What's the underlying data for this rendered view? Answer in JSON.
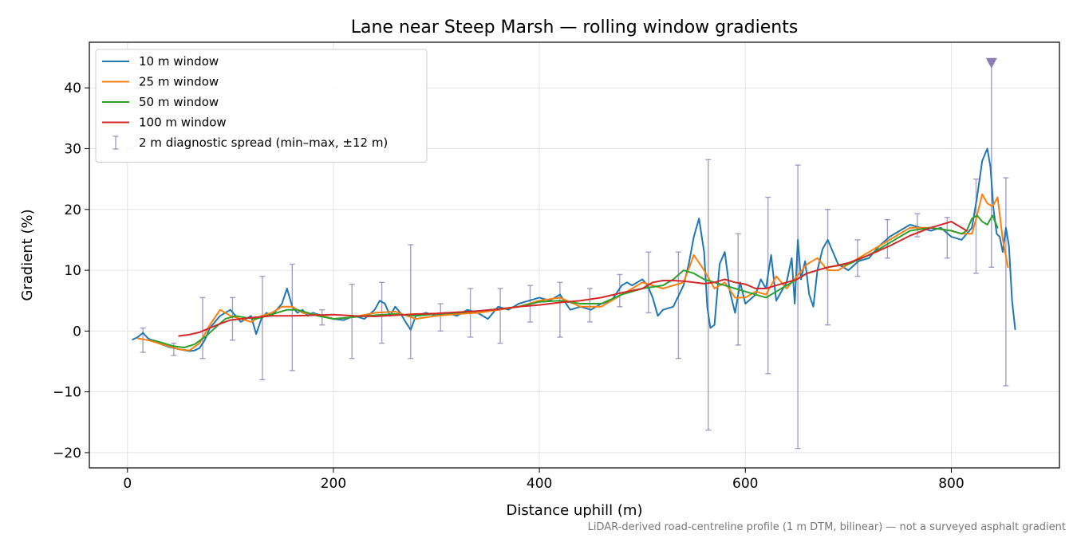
{
  "chart_data": {
    "type": "line",
    "title": "Lane near Steep Marsh — rolling window gradients",
    "xlabel": "Distance uphill (m)",
    "ylabel": "Gradient (%)",
    "xlim": [
      -37,
      905
    ],
    "ylim": [
      -22.5,
      47.5
    ],
    "xticks": [
      0,
      200,
      400,
      600,
      800
    ],
    "xtick_labels": [
      "0",
      "200",
      "400",
      "600",
      "800"
    ],
    "yticks": [
      -20,
      -10,
      0,
      10,
      20,
      30,
      40
    ],
    "ytick_labels": [
      "−20",
      "−10",
      "0",
      "10",
      "20",
      "30",
      "40"
    ],
    "grid": true,
    "legend_position": "top-left",
    "footnote": "LiDAR-derived road-centreline profile (1 m DTM, bilinear) — not a surveyed asphalt gradient",
    "series": [
      {
        "name": "10 m window",
        "color": "#1f77b4",
        "x": [
          5,
          10,
          15,
          20,
          25,
          30,
          40,
          50,
          60,
          65,
          70,
          75,
          80,
          90,
          100,
          110,
          120,
          125,
          130,
          135,
          140,
          145,
          150,
          155,
          160,
          165,
          170,
          175,
          180,
          190,
          200,
          210,
          220,
          230,
          240,
          245,
          250,
          255,
          260,
          265,
          270,
          275,
          280,
          290,
          300,
          310,
          320,
          330,
          340,
          350,
          360,
          370,
          380,
          390,
          400,
          410,
          420,
          430,
          440,
          450,
          460,
          470,
          480,
          485,
          490,
          500,
          505,
          510,
          515,
          520,
          530,
          540,
          545,
          550,
          555,
          560,
          563,
          566,
          570,
          575,
          580,
          585,
          590,
          595,
          600,
          610,
          615,
          620,
          625,
          630,
          640,
          645,
          648,
          651,
          654,
          658,
          662,
          666,
          670,
          675,
          680,
          690,
          700,
          710,
          720,
          730,
          740,
          750,
          760,
          770,
          780,
          790,
          800,
          810,
          815,
          820,
          825,
          830,
          835,
          838,
          841,
          844,
          847,
          850,
          853,
          856,
          859,
          862
        ],
        "values": [
          -1.4,
          -1.0,
          -0.3,
          -1.2,
          -1.6,
          -2.0,
          -2.6,
          -3.0,
          -3.3,
          -3.2,
          -2.8,
          -1.5,
          0.5,
          2.5,
          3.5,
          1.5,
          2.5,
          -0.5,
          2.0,
          3.0,
          2.5,
          3.5,
          4.5,
          7.0,
          4.0,
          3.0,
          3.5,
          2.5,
          3.0,
          2.5,
          2.0,
          1.8,
          2.5,
          2.0,
          3.5,
          5.0,
          4.5,
          2.5,
          4.0,
          3.0,
          1.5,
          0.2,
          2.5,
          3.0,
          2.5,
          3.0,
          2.5,
          3.5,
          3.0,
          2.0,
          4.0,
          3.5,
          4.5,
          5.0,
          5.5,
          5.0,
          6.0,
          3.5,
          4.0,
          3.5,
          4.5,
          5.0,
          7.5,
          8.0,
          7.5,
          8.5,
          7.5,
          5.5,
          2.5,
          3.5,
          4.0,
          7.5,
          11.0,
          15.5,
          18.5,
          13.0,
          4.0,
          0.5,
          1.0,
          11.0,
          13.0,
          6.5,
          3.0,
          8.0,
          4.5,
          6.0,
          8.5,
          7.0,
          12.5,
          5.0,
          8.0,
          12.0,
          4.5,
          15.0,
          8.5,
          11.5,
          6.0,
          4.0,
          10.0,
          13.5,
          15.0,
          11.0,
          10.0,
          11.5,
          12.0,
          14.0,
          15.5,
          16.5,
          17.5,
          17.0,
          16.5,
          17.0,
          15.5,
          15.0,
          16.0,
          17.0,
          22.0,
          28.0,
          30.0,
          27.0,
          20.0,
          16.0,
          15.5,
          13.0,
          17.0,
          14.0,
          5.0,
          0.3
        ]
      },
      {
        "name": "25 m window",
        "color": "#ff7f0e",
        "x": [
          10,
          20,
          30,
          40,
          50,
          60,
          70,
          80,
          90,
          100,
          110,
          120,
          130,
          140,
          150,
          160,
          170,
          180,
          190,
          200,
          220,
          240,
          260,
          280,
          300,
          320,
          340,
          360,
          380,
          400,
          420,
          440,
          460,
          480,
          500,
          520,
          540,
          550,
          560,
          570,
          580,
          590,
          600,
          610,
          620,
          630,
          640,
          650,
          660,
          670,
          680,
          690,
          700,
          720,
          740,
          760,
          780,
          800,
          810,
          820,
          825,
          830,
          835,
          840,
          845,
          850,
          855
        ],
        "values": [
          -1.2,
          -1.5,
          -2.0,
          -2.5,
          -3.0,
          -3.2,
          -2.0,
          1.0,
          3.5,
          2.5,
          2.0,
          1.5,
          2.5,
          3.0,
          4.0,
          4.0,
          3.0,
          2.8,
          2.5,
          2.0,
          2.3,
          3.0,
          3.2,
          2.0,
          2.5,
          2.8,
          3.0,
          3.5,
          4.0,
          5.0,
          5.5,
          4.0,
          4.0,
          6.0,
          8.0,
          7.0,
          8.0,
          12.5,
          10.0,
          7.0,
          8.0,
          5.5,
          5.5,
          6.5,
          6.0,
          9.0,
          7.0,
          9.0,
          11.0,
          12.0,
          10.0,
          10.0,
          11.0,
          13.0,
          15.0,
          17.0,
          17.0,
          16.5,
          16.0,
          16.0,
          19.0,
          22.5,
          21.0,
          20.5,
          22.0,
          15.0,
          10.5
        ]
      },
      {
        "name": "50 m window",
        "color": "#2ca02c",
        "x": [
          25,
          35,
          45,
          55,
          65,
          75,
          85,
          95,
          105,
          115,
          125,
          135,
          145,
          155,
          165,
          175,
          185,
          200,
          220,
          240,
          260,
          280,
          300,
          320,
          340,
          360,
          380,
          400,
          420,
          440,
          460,
          480,
          500,
          520,
          530,
          540,
          550,
          560,
          570,
          580,
          590,
          600,
          610,
          620,
          630,
          640,
          650,
          660,
          680,
          700,
          720,
          740,
          760,
          780,
          800,
          810,
          815,
          820,
          825,
          830,
          835,
          840,
          845
        ],
        "values": [
          -1.5,
          -2.0,
          -2.5,
          -2.7,
          -2.2,
          -1.0,
          0.5,
          2.0,
          2.5,
          2.2,
          2.0,
          2.5,
          3.0,
          3.5,
          3.5,
          3.0,
          2.5,
          2.0,
          2.3,
          2.6,
          2.8,
          2.5,
          2.8,
          3.0,
          3.3,
          3.6,
          4.0,
          4.8,
          5.0,
          4.5,
          4.5,
          6.0,
          7.0,
          7.5,
          8.5,
          10.0,
          9.5,
          8.5,
          8.0,
          7.5,
          7.0,
          6.5,
          6.0,
          5.5,
          6.5,
          7.5,
          8.5,
          9.5,
          10.5,
          11.0,
          12.5,
          14.5,
          16.5,
          17.0,
          16.5,
          16.0,
          16.5,
          18.5,
          19.0,
          18.0,
          17.5,
          19.0,
          17.0
        ]
      },
      {
        "name": "100 m window",
        "color": "#d62728",
        "x": [
          50,
          60,
          70,
          80,
          90,
          100,
          120,
          140,
          160,
          180,
          200,
          220,
          240,
          260,
          280,
          300,
          320,
          340,
          360,
          380,
          400,
          420,
          440,
          460,
          480,
          500,
          510,
          520,
          530,
          540,
          550,
          560,
          570,
          580,
          590,
          600,
          610,
          620,
          630,
          640,
          650,
          660,
          670,
          680,
          690,
          700,
          720,
          740,
          760,
          780,
          790,
          800,
          805,
          810,
          815
        ],
        "values": [
          -0.8,
          -0.6,
          -0.2,
          0.5,
          1.2,
          1.8,
          2.2,
          2.5,
          2.5,
          2.6,
          2.7,
          2.5,
          2.4,
          2.6,
          2.8,
          2.9,
          3.1,
          3.3,
          3.6,
          4.0,
          4.3,
          4.7,
          5.0,
          5.5,
          6.3,
          7.0,
          8.0,
          8.3,
          8.3,
          8.2,
          8.0,
          7.8,
          8.0,
          8.5,
          8.0,
          7.7,
          7.0,
          7.0,
          7.5,
          8.0,
          8.5,
          9.5,
          10.0,
          10.5,
          10.8,
          11.2,
          12.5,
          14.0,
          15.7,
          17.0,
          17.5,
          18.0,
          17.5,
          17.0,
          16.5
        ]
      }
    ],
    "errorbars": {
      "name": "2 m diagnostic spread (min–max, ±12 m)",
      "color": "#8a7fb0",
      "points": [
        {
          "x": 15,
          "lo": -3.5,
          "hi": 0.5
        },
        {
          "x": 45,
          "lo": -4.0,
          "hi": -2.0
        },
        {
          "x": 73,
          "lo": -4.5,
          "hi": 5.5
        },
        {
          "x": 102,
          "lo": -1.5,
          "hi": 5.5
        },
        {
          "x": 131,
          "lo": -8.0,
          "hi": 9.0
        },
        {
          "x": 160,
          "lo": -6.5,
          "hi": 11.0
        },
        {
          "x": 189,
          "lo": 1.0,
          "hi": 3.5
        },
        {
          "x": 218,
          "lo": -4.5,
          "hi": 7.7
        },
        {
          "x": 247,
          "lo": -2.0,
          "hi": 8.0
        },
        {
          "x": 275,
          "lo": -4.5,
          "hi": 14.2
        },
        {
          "x": 304,
          "lo": 0.0,
          "hi": 4.5
        },
        {
          "x": 333,
          "lo": -1.0,
          "hi": 7.0
        },
        {
          "x": 362,
          "lo": -2.0,
          "hi": 7.0
        },
        {
          "x": 391,
          "lo": 1.5,
          "hi": 7.5
        },
        {
          "x": 420,
          "lo": -1.0,
          "hi": 8.0
        },
        {
          "x": 449,
          "lo": 1.5,
          "hi": 7.0
        },
        {
          "x": 478,
          "lo": 4.0,
          "hi": 9.3
        },
        {
          "x": 506,
          "lo": 3.0,
          "hi": 13.0
        },
        {
          "x": 535,
          "lo": -4.5,
          "hi": 13.0
        },
        {
          "x": 564,
          "lo": -16.3,
          "hi": 28.2
        },
        {
          "x": 593,
          "lo": -2.3,
          "hi": 16.0
        },
        {
          "x": 622,
          "lo": -7.0,
          "hi": 22.0
        },
        {
          "x": 651,
          "lo": -19.3,
          "hi": 27.3
        },
        {
          "x": 680,
          "lo": 1.0,
          "hi": 20.0
        },
        {
          "x": 709,
          "lo": 9.0,
          "hi": 15.0
        },
        {
          "x": 738,
          "lo": 12.0,
          "hi": 18.3
        },
        {
          "x": 767,
          "lo": 15.5,
          "hi": 19.3
        },
        {
          "x": 796,
          "lo": 12.0,
          "hi": 18.7
        },
        {
          "x": 824,
          "lo": 9.5,
          "hi": 25.0
        },
        {
          "x": 839,
          "lo": 10.5,
          "hi": 44.0
        },
        {
          "x": 853,
          "lo": -9.0,
          "hi": 25.2
        }
      ],
      "marker": {
        "x": 839,
        "y": 44.0,
        "shape": "triangle-down"
      }
    }
  }
}
